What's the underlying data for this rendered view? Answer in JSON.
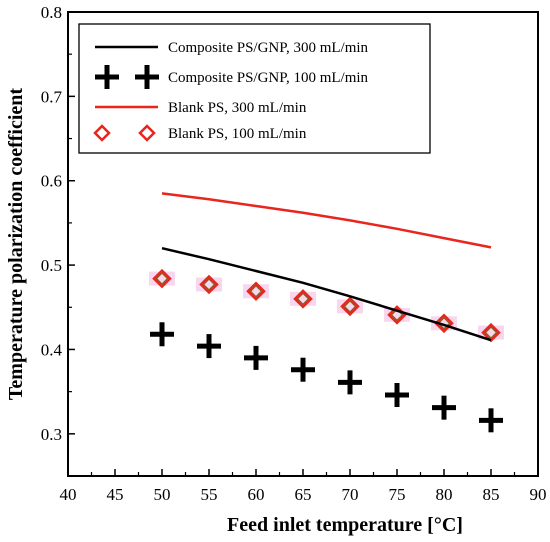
{
  "chart_data": {
    "type": "line",
    "xlabel": "Feed inlet temperature [°C]",
    "ylabel": "Temperature polarization coefficient",
    "xlim": [
      40,
      90
    ],
    "ylim": [
      0.25,
      0.8
    ],
    "xticks": [
      "40",
      "45",
      "50",
      "55",
      "60",
      "65",
      "70",
      "75",
      "80",
      "85",
      "90"
    ],
    "yticks": [
      "0.3",
      "0.4",
      "0.5",
      "0.6",
      "0.7",
      "0.8"
    ],
    "grid": false,
    "legend_position": "top-left",
    "series": [
      {
        "name": "Composite PS/GNP, 300 mL/min",
        "style": "line",
        "color": "#000000",
        "x": [
          50,
          55,
          60,
          65,
          70,
          75,
          80,
          85
        ],
        "y": [
          0.52,
          0.507,
          0.493,
          0.479,
          0.463,
          0.446,
          0.429,
          0.411
        ]
      },
      {
        "name": "Composite PS/GNP, 100 mL/min",
        "style": "plus",
        "color": "#000000",
        "x": [
          50,
          55,
          60,
          65,
          70,
          75,
          80,
          85
        ],
        "y": [
          0.418,
          0.404,
          0.39,
          0.376,
          0.361,
          0.346,
          0.331,
          0.316
        ]
      },
      {
        "name": "Blank PS, 300 mL/min",
        "style": "line",
        "color": "#e8251f",
        "x": [
          50,
          55,
          60,
          65,
          70,
          75,
          80,
          85
        ],
        "y": [
          0.585,
          0.578,
          0.57,
          0.562,
          0.553,
          0.543,
          0.532,
          0.521
        ]
      },
      {
        "name": "Blank PS, 100 mL/min",
        "style": "diamond",
        "color": "#e8251f",
        "x": [
          50,
          55,
          60,
          65,
          70,
          75,
          80,
          85
        ],
        "y": [
          0.484,
          0.477,
          0.469,
          0.46,
          0.451,
          0.441,
          0.431,
          0.42
        ]
      }
    ]
  }
}
